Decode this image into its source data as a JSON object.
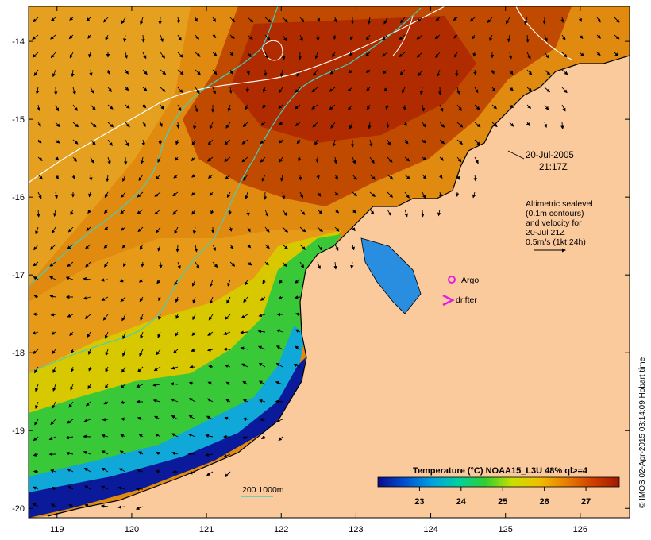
{
  "map": {
    "date_label": "20-Jul-2005",
    "time_label": "21:17Z",
    "legend_text": {
      "line1": "Altimetric sealevel",
      "line2": "(0.1m contours)",
      "line3": "and velocity for",
      "line4": "20-Jul 21Z",
      "line5": "0.5m/s (1kt 24h)"
    },
    "argo_label": "Argo",
    "drifter_label": "drifter",
    "depth_legend": "200  1000m",
    "credit": "© IMOS 02-Apr-2015 03:14:09 Hobart time",
    "lon_ticks": [
      "119",
      "120",
      "121",
      "122",
      "123",
      "124",
      "125",
      "126"
    ],
    "lat_ticks": [
      "-14",
      "-15",
      "-16",
      "-17",
      "-18",
      "-19",
      "-20"
    ],
    "colorbar": {
      "title": "Temperature (°C) NOAA15_L3U 48% ql>=4",
      "ticks": [
        "23",
        "24",
        "25",
        "26",
        "27"
      ],
      "stops": [
        "#0a0a8c",
        "#0050d0",
        "#00a0e0",
        "#00d0a0",
        "#30d030",
        "#c8e000",
        "#f0c000",
        "#e88000",
        "#d04000",
        "#a01800"
      ]
    },
    "colors": {
      "land": "#fac99c",
      "hot": "#b83400",
      "warm": "#d86a00",
      "mid": "#e89a10",
      "green": "#2ec830",
      "cyan": "#00b0e0",
      "deep": "#0a1a9a",
      "isobath": "#40d0c0",
      "contour": "#ffffff",
      "argo": "#e020e0"
    }
  }
}
